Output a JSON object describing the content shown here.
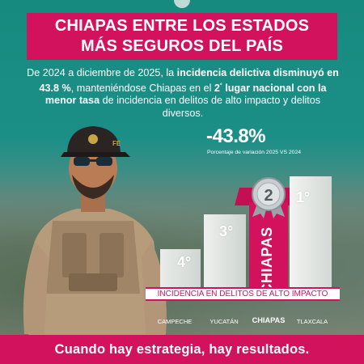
{
  "header": {
    "title_line1": "CHIAPAS ENTRE LOS ESTADOS",
    "title_line2": "MÁS SEGUROS DEL PAÍS"
  },
  "intro": {
    "part1": "De 2024 a diciembre de 2025, la ",
    "bold1": "incidencia delictiva disminuyó en 43.8 %",
    "part2": ", manteniéndose Chiapas en el ",
    "bold2": "2",
    "bold2_sup": "°",
    "bold3": " lugar nacional con la menor tasa",
    "part3": " de incidencia en delitos de alto impacto y delitos diversos."
  },
  "variation": {
    "value": "-43.8%",
    "label": "Porcentaje de variación 2025 VS 2024"
  },
  "podium": {
    "category_label": "INCIDENCIA EN DELITOS DE ALTO IMPACTO",
    "places": [
      {
        "state": "CAMPECHE",
        "rank": "4°"
      },
      {
        "state": "YUCATÁN",
        "rank": "3°"
      },
      {
        "state": "CHIAPAS",
        "rank": "2",
        "highlight_vertical": "CHIAPAS"
      },
      {
        "state": "TLAXCALA",
        "rank": "1°"
      }
    ]
  },
  "footer": {
    "slogan": "Cuando hay estrategia, hay resultados."
  },
  "colors": {
    "accent": "#d3125d",
    "teal_bg": "#178a80"
  }
}
